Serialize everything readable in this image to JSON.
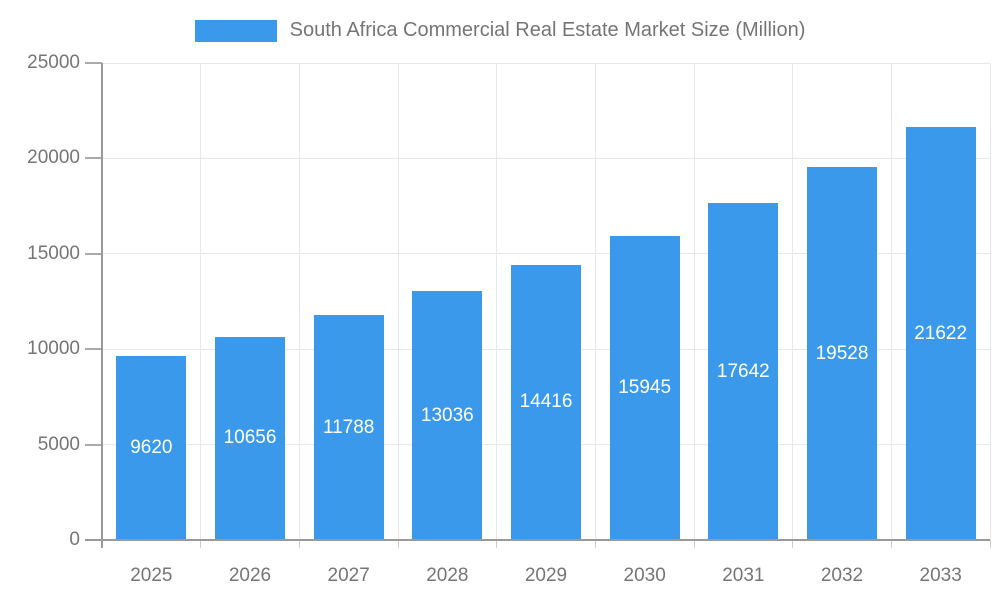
{
  "chart_data": {
    "type": "bar",
    "categories": [
      "2025",
      "2026",
      "2027",
      "2028",
      "2029",
      "2030",
      "2031",
      "2032",
      "2033"
    ],
    "series": [
      {
        "name": "South Africa Commercial Real Estate Market Size (Million)",
        "values": [
          9620,
          10656,
          11788,
          13036,
          14416,
          15945,
          17642,
          19528,
          21622
        ]
      }
    ],
    "title": "South Africa Commercial Real Estate Market Size (Million)",
    "xlabel": "",
    "ylabel": "",
    "ylim": [
      0,
      25000
    ],
    "yticks": [
      0,
      5000,
      10000,
      15000,
      20000,
      25000
    ],
    "grid": true,
    "legend_position": "top-center",
    "bar_labels": "inside-centered",
    "colors": {
      "bar": "#3B99EC",
      "axis": "#999999",
      "grid": "#E8E8E8",
      "y_tick": "#AAAAAA",
      "x_tick": "#CCCCCC",
      "axis_text": "#757575",
      "bar_label_text": "#FFFFFF",
      "background": "#FFFFFF"
    }
  }
}
